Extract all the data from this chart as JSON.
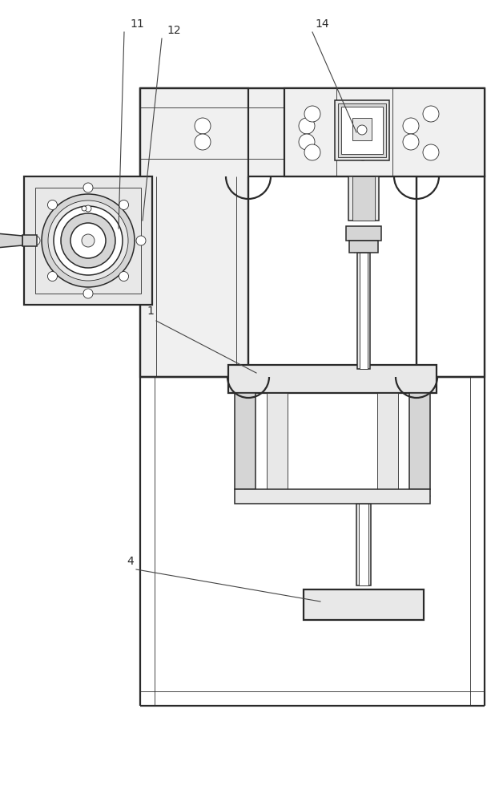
{
  "bg_color": "#ffffff",
  "lc": "#2a2a2a",
  "fc_plate": "#f0f0f0",
  "fc_light": "#e8e8e8",
  "fc_mid": "#d5d5d5",
  "fc_dark": "#c0c0c0",
  "lw_thick": 1.6,
  "lw_main": 1.1,
  "lw_thin": 0.6,
  "figsize": [
    6.28,
    10.0
  ],
  "dpi": 100
}
